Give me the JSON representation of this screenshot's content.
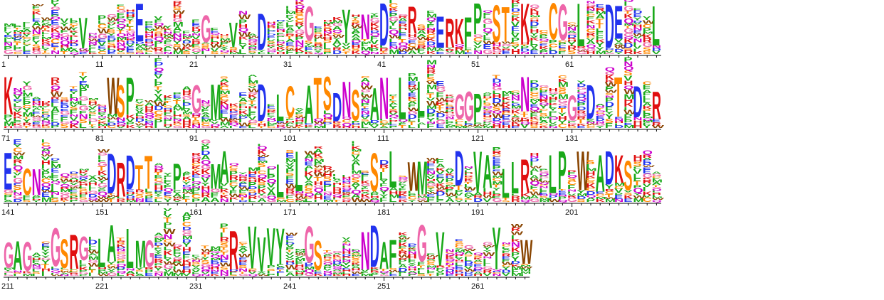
{
  "figure": {
    "type": "sequence-logo",
    "alphabet": "protein",
    "total_positions": 266,
    "positions_per_row": 70,
    "tick_labels": [
      "1",
      "11",
      "21",
      "31",
      "41",
      "51",
      "61",
      "71",
      "81",
      "91",
      "101",
      "111",
      "121",
      "131",
      "141",
      "151",
      "161",
      "171",
      "181",
      "191",
      "201",
      "211",
      "221",
      "231",
      "241",
      "251",
      "261"
    ]
  },
  "color_scheme": {
    "green": "#1aa91a",
    "blue": "#2233ee",
    "purple": "#cc00cc",
    "red": "#e01010",
    "black": "#111111",
    "orange": "#ff8800",
    "pink": "#ee66aa",
    "brown": "#884400"
  },
  "residue_colors": {
    "A": "green",
    "V": "green",
    "L": "green",
    "I": "green",
    "M": "green",
    "F": "green",
    "W": "brown",
    "P": "green",
    "D": "blue",
    "E": "blue",
    "K": "red",
    "R": "red",
    "H": "red",
    "S": "orange",
    "T": "orange",
    "C": "orange",
    "N": "purple",
    "Q": "purple",
    "G": "pink",
    "Y": "green"
  },
  "dominant_residues": {
    "9": "V",
    "15": "E",
    "22": "G",
    "25": "V",
    "28": "D",
    "33": "G",
    "37": "Y",
    "39": "N",
    "41": "D",
    "44": "R",
    "47": "E",
    "48": "R",
    "49": "K",
    "50": "F",
    "51": "P",
    "53": "S",
    "54": "T",
    "56": "K",
    "59": "C",
    "60": "G",
    "62": "L",
    "65": "D",
    "66": "E",
    "70": "L",
    "71": "K",
    "82": "W",
    "83": "S",
    "84": "P",
    "91": "G",
    "93": "M",
    "98": "D",
    "100": "L",
    "101": "C",
    "103": "A",
    "104": "T",
    "105": "S",
    "106": "D",
    "107": "N",
    "108": "S",
    "110": "A",
    "111": "N",
    "113": "L",
    "115": "L",
    "119": "G",
    "120": "G",
    "121": "P",
    "126": "N",
    "131": "G",
    "133": "D",
    "136": "T",
    "138": "D",
    "140": "R",
    "141": "E",
    "143": "C",
    "144": "N",
    "152": "D",
    "153": "R",
    "154": "D",
    "155": "T",
    "156": "T",
    "159": "P",
    "163": "M",
    "164": "A",
    "170": "L",
    "172": "L",
    "180": "S",
    "182": "L",
    "184": "W",
    "185": "M",
    "189": "D",
    "191": "V",
    "192": "A",
    "194": "L",
    "195": "L",
    "196": "R",
    "199": "L",
    "200": "P",
    "202": "W",
    "204": "A",
    "205": "D",
    "206": "K",
    "207": "S",
    "211": "G",
    "212": "A",
    "213": "G",
    "216": "G",
    "217": "S",
    "218": "R",
    "219": "G",
    "221": "L",
    "222": "A",
    "224": "L",
    "225": "M",
    "226": "G",
    "235": "R",
    "237": "V",
    "238": "V",
    "239": "V",
    "240": "Y",
    "243": "G",
    "244": "S",
    "249": "N",
    "250": "D",
    "251": "A",
    "252": "F",
    "255": "G",
    "257": "V",
    "263": "Y",
    "266": "W"
  }
}
